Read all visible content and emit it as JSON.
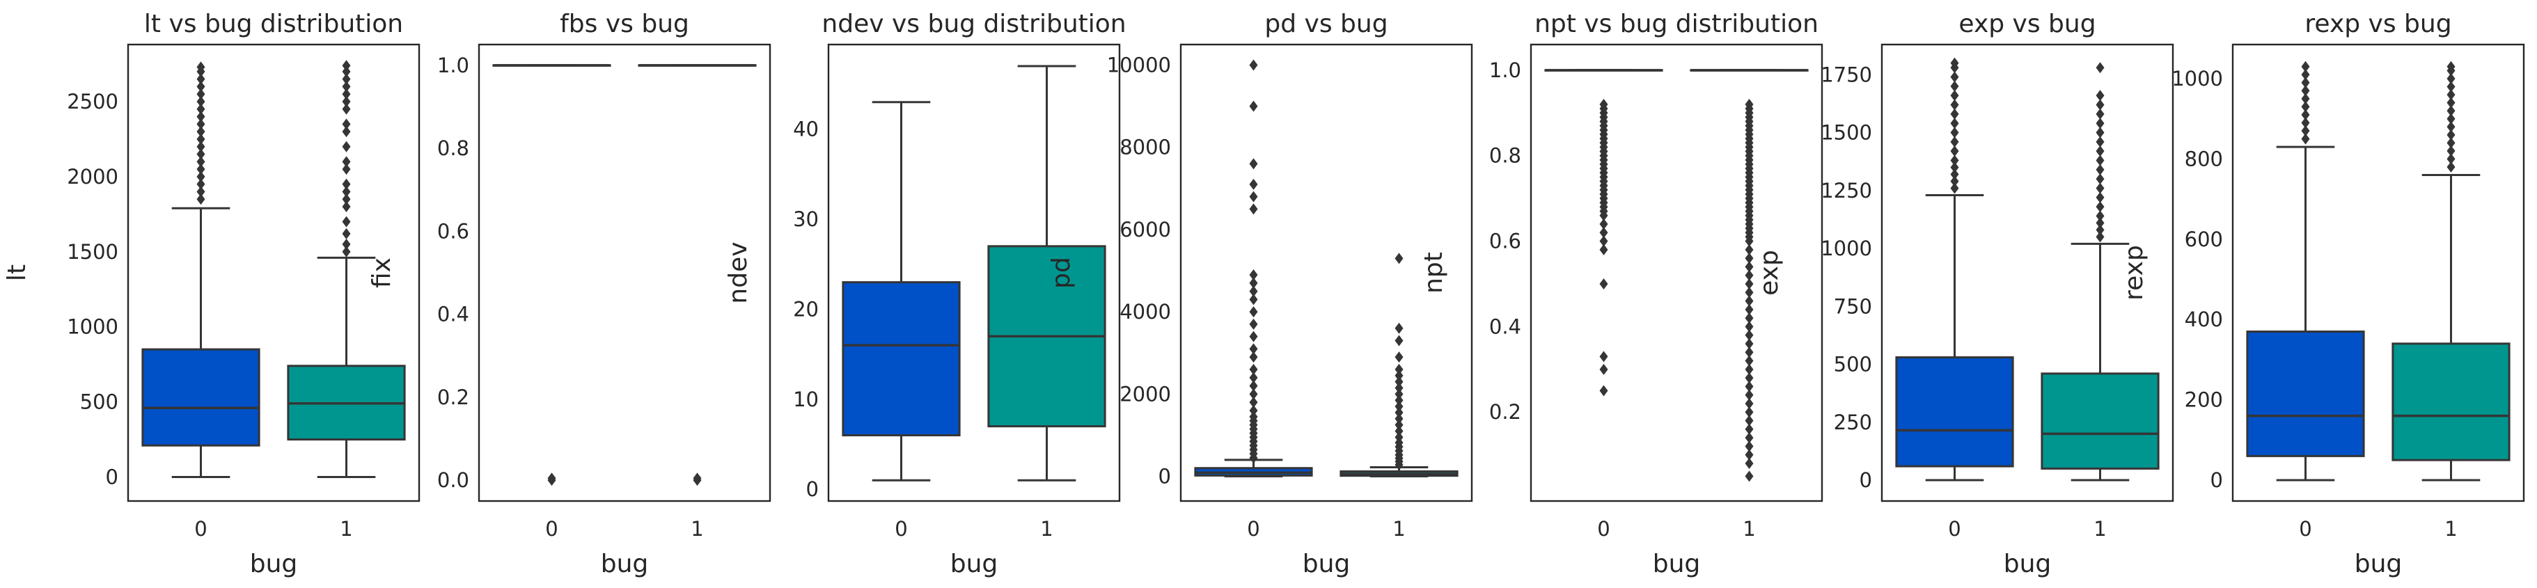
{
  "colors": {
    "bug0": "#0050c8",
    "bug1": "#009690",
    "line": "#353535",
    "frame": "#262626"
  },
  "chart_data": [
    {
      "type": "box",
      "title": "lt vs bug distribution",
      "xlabel": "bug",
      "ylabel": "lt",
      "categories": [
        "0",
        "1"
      ],
      "ylim": [
        -160,
        2880
      ],
      "yticks": [
        0,
        500,
        1000,
        1500,
        2000,
        2500
      ],
      "yticklabels": [
        "0",
        "500",
        "1000",
        "1500",
        "2000",
        "2500"
      ],
      "boxes": [
        {
          "category": "0",
          "whislo": 0,
          "q1": 210,
          "med": 460,
          "q3": 850,
          "whishi": 1790,
          "fliers": [
            1850,
            1900,
            1950,
            2000,
            2050,
            2100,
            2150,
            2200,
            2250,
            2300,
            2350,
            2400,
            2450,
            2500,
            2550,
            2600,
            2650,
            2700,
            2730
          ]
        },
        {
          "category": "1",
          "whislo": 0,
          "q1": 250,
          "med": 490,
          "q3": 740,
          "whishi": 1460,
          "fliers": [
            1500,
            1550,
            1620,
            1700,
            1800,
            1850,
            1900,
            1950,
            2050,
            2100,
            2200,
            2300,
            2350,
            2450,
            2500,
            2550,
            2600,
            2650,
            2700,
            2740
          ]
        }
      ]
    },
    {
      "type": "box",
      "title": "fbs vs bug",
      "xlabel": "bug",
      "ylabel": "fix",
      "categories": [
        "0",
        "1"
      ],
      "ylim": [
        -0.05,
        1.05
      ],
      "yticks": [
        0,
        0.2,
        0.4,
        0.6,
        0.8,
        1.0
      ],
      "yticklabels": [
        "0.0",
        "0.2",
        "0.4",
        "0.6",
        "0.8",
        "1.0"
      ],
      "boxes": [
        {
          "category": "0",
          "whislo": 1.0,
          "q1": 1.0,
          "med": 1.0,
          "q3": 1.0,
          "whishi": 1.0,
          "fliers": [
            0,
            0.005
          ]
        },
        {
          "category": "1",
          "whislo": 1.0,
          "q1": 1.0,
          "med": 1.0,
          "q3": 1.0,
          "whishi": 1.0,
          "fliers": [
            0,
            0.005
          ]
        }
      ]
    },
    {
      "type": "box",
      "title": "ndev vs bug distribution",
      "xlabel": "bug",
      "ylabel": "ndev",
      "categories": [
        "0",
        "1"
      ],
      "ylim": [
        -1.3,
        49.4
      ],
      "yticks": [
        0,
        10,
        20,
        30,
        40
      ],
      "yticklabels": [
        "0",
        "10",
        "20",
        "30",
        "40"
      ],
      "boxes": [
        {
          "category": "0",
          "whislo": 1,
          "q1": 6,
          "med": 16,
          "q3": 23,
          "whishi": 43,
          "fliers": []
        },
        {
          "category": "1",
          "whislo": 1,
          "q1": 7,
          "med": 17,
          "q3": 27,
          "whishi": 47,
          "fliers": []
        }
      ]
    },
    {
      "type": "box",
      "title": "pd vs bug",
      "xlabel": "bug",
      "ylabel": "pd",
      "categories": [
        "0",
        "1"
      ],
      "ylim": [
        -600,
        10500
      ],
      "yticks": [
        0,
        2000,
        4000,
        6000,
        8000,
        10000
      ],
      "yticklabels": [
        "0",
        "2000",
        "4000",
        "6000",
        "8000",
        "10000"
      ],
      "boxes": [
        {
          "category": "0",
          "whislo": 0,
          "q1": 20,
          "med": 90,
          "q3": 200,
          "whishi": 400,
          "fliers": [
            450,
            550,
            650,
            750,
            850,
            950,
            1050,
            1150,
            1250,
            1350,
            1450,
            1600,
            1800,
            2000,
            2200,
            2400,
            2600,
            2900,
            3100,
            3400,
            3700,
            4000,
            4300,
            4500,
            4700,
            4900,
            6500,
            6800,
            7100,
            7600,
            9000,
            10000
          ]
        },
        {
          "category": "1",
          "whislo": 0,
          "q1": 15,
          "med": 60,
          "q3": 120,
          "whishi": 220,
          "fliers": [
            280,
            360,
            440,
            520,
            620,
            720,
            820,
            950,
            1100,
            1250,
            1400,
            1550,
            1700,
            1850,
            2000,
            2150,
            2300,
            2450,
            2600,
            2900,
            3300,
            3600,
            5300
          ]
        }
      ]
    },
    {
      "type": "box",
      "title": "npt vs bug distribution",
      "xlabel": "bug",
      "ylabel": "npt",
      "categories": [
        "0",
        "1"
      ],
      "ylim": [
        -0.008,
        1.06
      ],
      "yticks": [
        0.2,
        0.4,
        0.6,
        0.8,
        1.0
      ],
      "yticklabels": [
        "0.2",
        "0.4",
        "0.6",
        "0.8",
        "1.0"
      ],
      "boxes": [
        {
          "category": "0",
          "whislo": 1.0,
          "q1": 1.0,
          "med": 1.0,
          "q3": 1.0,
          "whishi": 1.0,
          "fliers": [
            0.92,
            0.91,
            0.9,
            0.89,
            0.88,
            0.87,
            0.86,
            0.85,
            0.84,
            0.83,
            0.82,
            0.81,
            0.8,
            0.79,
            0.78,
            0.77,
            0.76,
            0.75,
            0.74,
            0.73,
            0.72,
            0.71,
            0.7,
            0.69,
            0.68,
            0.67,
            0.66,
            0.64,
            0.62,
            0.6,
            0.58,
            0.5,
            0.33,
            0.3,
            0.25
          ]
        },
        {
          "category": "1",
          "whislo": 1.0,
          "q1": 1.0,
          "med": 1.0,
          "q3": 1.0,
          "whishi": 1.0,
          "fliers": [
            0.92,
            0.91,
            0.9,
            0.89,
            0.88,
            0.87,
            0.86,
            0.85,
            0.84,
            0.83,
            0.82,
            0.81,
            0.8,
            0.79,
            0.78,
            0.77,
            0.76,
            0.75,
            0.74,
            0.73,
            0.72,
            0.71,
            0.7,
            0.69,
            0.68,
            0.67,
            0.66,
            0.65,
            0.64,
            0.63,
            0.62,
            0.61,
            0.6,
            0.58,
            0.56,
            0.54,
            0.52,
            0.5,
            0.48,
            0.46,
            0.44,
            0.42,
            0.4,
            0.38,
            0.36,
            0.34,
            0.32,
            0.3,
            0.28,
            0.26,
            0.24,
            0.22,
            0.2,
            0.18,
            0.16,
            0.14,
            0.12,
            0.1,
            0.08,
            0.05
          ]
        }
      ]
    },
    {
      "type": "box",
      "title": "exp vs bug",
      "xlabel": "bug",
      "ylabel": "exp",
      "categories": [
        "0",
        "1"
      ],
      "ylim": [
        -90,
        1880
      ],
      "yticks": [
        0,
        250,
        500,
        750,
        1000,
        1250,
        1500,
        1750
      ],
      "yticklabels": [
        "0",
        "250",
        "500",
        "750",
        "1000",
        "1250",
        "1500",
        "1750"
      ],
      "boxes": [
        {
          "category": "0",
          "whislo": 0,
          "q1": 60,
          "med": 215,
          "q3": 530,
          "whishi": 1230,
          "fliers": [
            1260,
            1290,
            1320,
            1350,
            1380,
            1420,
            1460,
            1500,
            1540,
            1580,
            1620,
            1660,
            1700,
            1740,
            1780,
            1800
          ]
        },
        {
          "category": "1",
          "whislo": 0,
          "q1": 50,
          "med": 200,
          "q3": 460,
          "whishi": 1020,
          "fliers": [
            1050,
            1080,
            1110,
            1140,
            1180,
            1220,
            1260,
            1300,
            1340,
            1380,
            1420,
            1460,
            1500,
            1540,
            1580,
            1620,
            1660,
            1780
          ]
        }
      ]
    },
    {
      "type": "box",
      "title": "rexp vs bug",
      "xlabel": "bug",
      "ylabel": "rexp",
      "categories": [
        "0",
        "1"
      ],
      "ylim": [
        -52,
        1085
      ],
      "yticks": [
        0,
        200,
        400,
        600,
        800,
        1000
      ],
      "yticklabels": [
        "0",
        "200",
        "400",
        "600",
        "800",
        "1000"
      ],
      "boxes": [
        {
          "category": "0",
          "whislo": 0,
          "q1": 60,
          "med": 160,
          "q3": 370,
          "whishi": 830,
          "fliers": [
            850,
            870,
            890,
            910,
            930,
            950,
            970,
            990,
            1010,
            1030
          ]
        },
        {
          "category": "1",
          "whislo": 0,
          "q1": 50,
          "med": 160,
          "q3": 340,
          "whishi": 760,
          "fliers": [
            780,
            800,
            820,
            840,
            860,
            880,
            900,
            920,
            940,
            960,
            980,
            1000,
            1020,
            1030
          ]
        }
      ]
    }
  ]
}
